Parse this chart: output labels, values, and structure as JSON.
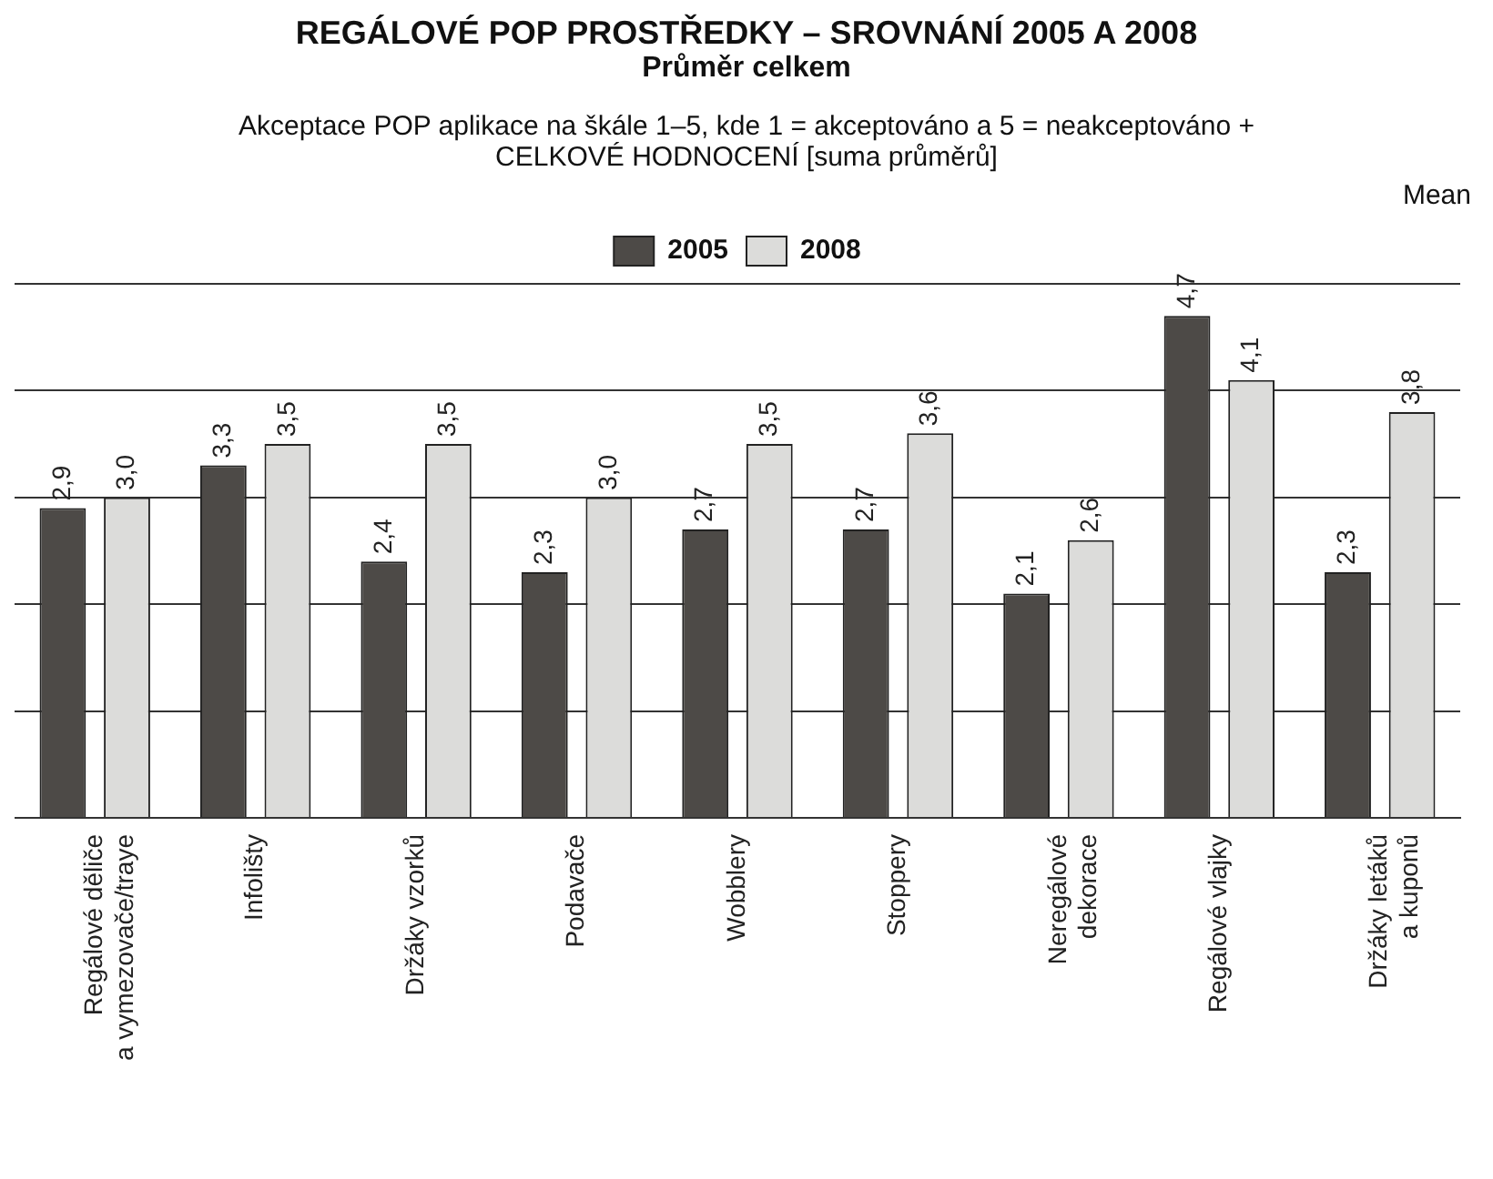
{
  "chart_data": {
    "type": "bar",
    "title": "REGÁLOVÉ POP PROSTŘEDKY – SROVNÁNÍ 2005 A 2008",
    "subtitle": "Průměr celkem",
    "annotations": [
      "Akceptace POP aplikace na škále 1–5, kde 1 = akceptováno a 5 = neakceptováno + CELKOVÉ HODNOCENÍ [suma průměrů]"
    ],
    "ylabel": "Mean",
    "categories": [
      "Regálové děliče a vymezovače/traye",
      "Infolišty",
      "Držáky vzorků",
      "Podavače",
      "Wobblery",
      "Stoppery",
      "Neregálové dekorace",
      "Regálové vlajky",
      "Držáky letáků a kuponů"
    ],
    "series": [
      {
        "name": "2005",
        "color": "#4d4a47",
        "values": [
          2.9,
          3.3,
          2.4,
          2.3,
          2.7,
          2.7,
          2.1,
          4.7,
          2.3
        ],
        "value_labels": [
          "2,9",
          "3,3",
          "2,4",
          "2,3",
          "2,7",
          "2,7",
          "2,1",
          "4,7",
          "2,3"
        ]
      },
      {
        "name": "2008",
        "color": "#dcdcda",
        "values": [
          3.0,
          3.5,
          3.5,
          3.0,
          3.5,
          3.6,
          2.6,
          4.1,
          3.8
        ],
        "value_labels": [
          "3,0",
          "3,5",
          "3,5",
          "3,0",
          "3,5",
          "3,6",
          "2,6",
          "4,1",
          "3,8"
        ]
      }
    ],
    "ylim": [
      0,
      5
    ],
    "yticks": [
      {
        "value": 0,
        "label": null
      },
      {
        "value": 1,
        "label": null
      },
      {
        "value": 2,
        "label": null
      },
      {
        "value": 3,
        "label": null
      },
      {
        "value": 4,
        "label": null
      },
      {
        "value": 5,
        "label": null
      }
    ],
    "tick_labels": "x",
    "grid": "y",
    "legend": "top"
  }
}
